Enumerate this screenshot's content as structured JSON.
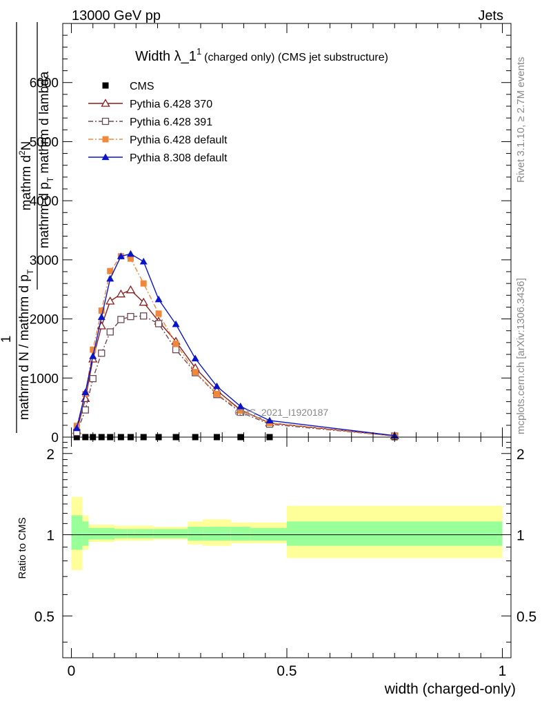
{
  "header": {
    "left": "13000 GeV pp",
    "right": "Jets"
  },
  "side": {
    "rivet": "Rivet 3.1.10, ≥ 2.7M events",
    "mcplots": "mcplots.cern.ch [arXiv:1306.3436]"
  },
  "chart_data": [
    {
      "type": "line",
      "title_main": "Width λ_1",
      "title_sup": "1",
      "title_sub": "(charged only) (CMS jet substructure)",
      "watermark": "CMS_2021_I1920187",
      "ylabel_top_num": "mathrm d",
      "ylabel_top_sup": "2",
      "ylabel_top_rest": "N",
      "ylabel_top_den": "mathrm d p",
      "ylabel_top_den_sub": "T",
      "ylabel_top_den_rest": " mathrm d lambda",
      "ylabel_left_num": "1",
      "ylabel_left_den": "mathrm d N / mathrm d p",
      "ylabel_left_den_sub": "T",
      "ylim": [
        0,
        7000
      ],
      "xlim": [
        -0.02,
        1.02
      ],
      "yticks": [
        0,
        1000,
        2000,
        3000,
        4000,
        5000,
        6000
      ],
      "ytick_labels": [
        "0",
        "1000",
        "2000",
        "3000",
        "4000",
        "5000",
        "6000"
      ],
      "x": [
        0.0125,
        0.0325,
        0.05,
        0.07,
        0.09,
        0.115,
        0.1375,
        0.1675,
        0.2025,
        0.2425,
        0.2875,
        0.3375,
        0.3925,
        0.46,
        0.75
      ],
      "legend_position": "top-left",
      "series": [
        {
          "name": "CMS",
          "color": "#000000",
          "marker": "square-filled",
          "values": [
            0,
            0,
            0,
            0,
            0,
            0,
            0,
            0,
            0,
            0,
            0,
            0,
            0,
            0,
            0
          ]
        },
        {
          "name": "Pythia 6.428 370",
          "color": "#8b1a1a",
          "marker": "triangle-open",
          "dash": "solid",
          "values": [
            110,
            650,
            1320,
            1880,
            2300,
            2420,
            2490,
            2280,
            1960,
            1620,
            1170,
            790,
            460,
            240,
            20
          ]
        },
        {
          "name": "Pythia 6.428 391",
          "color": "#6b4652",
          "marker": "square-open",
          "dash": "dashdot",
          "values": [
            80,
            460,
            990,
            1420,
            1780,
            1990,
            2040,
            2050,
            1920,
            1480,
            1090,
            720,
            420,
            220,
            18
          ]
        },
        {
          "name": "Pythia 6.428 default",
          "color": "#f0883c",
          "marker": "square-filled",
          "dash": "dashdot",
          "values": [
            190,
            730,
            1480,
            2140,
            2810,
            3060,
            3020,
            2600,
            2090,
            1580,
            1100,
            730,
            450,
            240,
            20
          ]
        },
        {
          "name": "Pythia 8.308 default",
          "color": "#0a14c8",
          "marker": "triangle-filled",
          "dash": "solid",
          "values": [
            150,
            760,
            1370,
            2030,
            2680,
            3060,
            3100,
            2970,
            2330,
            1910,
            1330,
            860,
            520,
            280,
            25
          ]
        }
      ]
    },
    {
      "type": "area",
      "ylabel": "Ratio to CMS",
      "xlabel": "width (charged-only)",
      "ylim": [
        0.35,
        2.3
      ],
      "log_y": true,
      "yticks": [
        0.5,
        1,
        2
      ],
      "ytick_labels": [
        "0.5",
        "1",
        "2"
      ],
      "xticks": [
        0,
        0.5,
        1
      ],
      "xtick_labels": [
        "0",
        "0.5",
        "1"
      ],
      "bins": [
        0,
        0.025,
        0.04,
        0.06,
        0.08,
        0.1,
        0.13,
        0.145,
        0.19,
        0.215,
        0.27,
        0.305,
        0.37,
        0.415,
        0.5,
        1.0
      ],
      "band_inner": {
        "name": "stat",
        "color": "#99ff99",
        "lo": [
          0.88,
          0.91,
          0.96,
          0.96,
          0.96,
          0.97,
          0.97,
          0.97,
          0.97,
          0.97,
          0.95,
          0.95,
          0.95,
          0.95,
          0.91
        ],
        "hi": [
          1.18,
          1.12,
          1.06,
          1.06,
          1.06,
          1.05,
          1.05,
          1.05,
          1.05,
          1.05,
          1.07,
          1.07,
          1.07,
          1.06,
          1.12
        ]
      },
      "band_outer": {
        "name": "total",
        "color": "#ffff99",
        "lo": [
          0.74,
          0.88,
          0.94,
          0.94,
          0.94,
          0.95,
          0.95,
          0.95,
          0.96,
          0.96,
          0.92,
          0.91,
          0.93,
          0.93,
          0.82
        ],
        "hi": [
          1.38,
          1.18,
          1.09,
          1.09,
          1.09,
          1.08,
          1.08,
          1.08,
          1.07,
          1.07,
          1.12,
          1.14,
          1.11,
          1.11,
          1.28
        ]
      },
      "reference": 1
    }
  ]
}
